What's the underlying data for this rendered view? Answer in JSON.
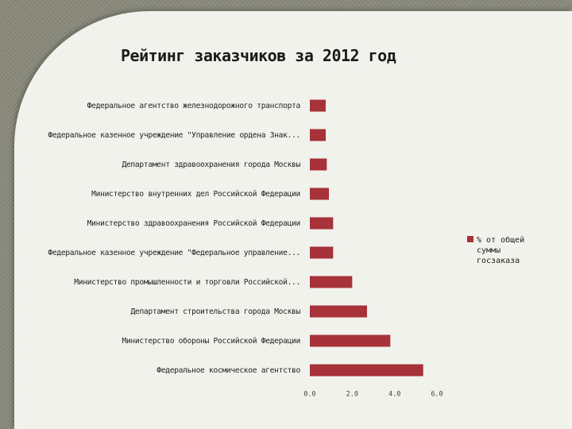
{
  "chart_data": {
    "type": "bar",
    "orientation": "horizontal",
    "title": "Рейтинг заказчиков за 2012 год",
    "categories": [
      "Федеральное агентство железнодорожного транспорта",
      "Федеральное казенное учреждение \"Управление ордена Знак...",
      "Департамент здравоохранения города Москвы",
      "Министерство внутренних дел Российской Федерации",
      "Министерство здравоохранения Российской Федерации",
      "Федеральное казенное учреждение \"Федеральное управление...",
      "Министерство промышленности и торговли Российской...",
      "Департамент строительства города Москвы",
      "Министерство обороны Российской Федерации",
      "Федеральное космическое агентство"
    ],
    "series": [
      {
        "name": "% от общей суммы госзаказа",
        "values": [
          0.75,
          0.75,
          0.8,
          0.9,
          1.1,
          1.1,
          2.0,
          2.7,
          3.8,
          5.35
        ]
      }
    ],
    "xlim": [
      0,
      6
    ],
    "xticks": [
      "0.0",
      "2.0",
      "4.0",
      "6.0"
    ],
    "grid": false,
    "legend_position": "right",
    "colors": {
      "bar": "#a8323a"
    }
  },
  "legend": {
    "line1": "% от общей",
    "line2": "суммы",
    "line3": "госзаказа"
  }
}
